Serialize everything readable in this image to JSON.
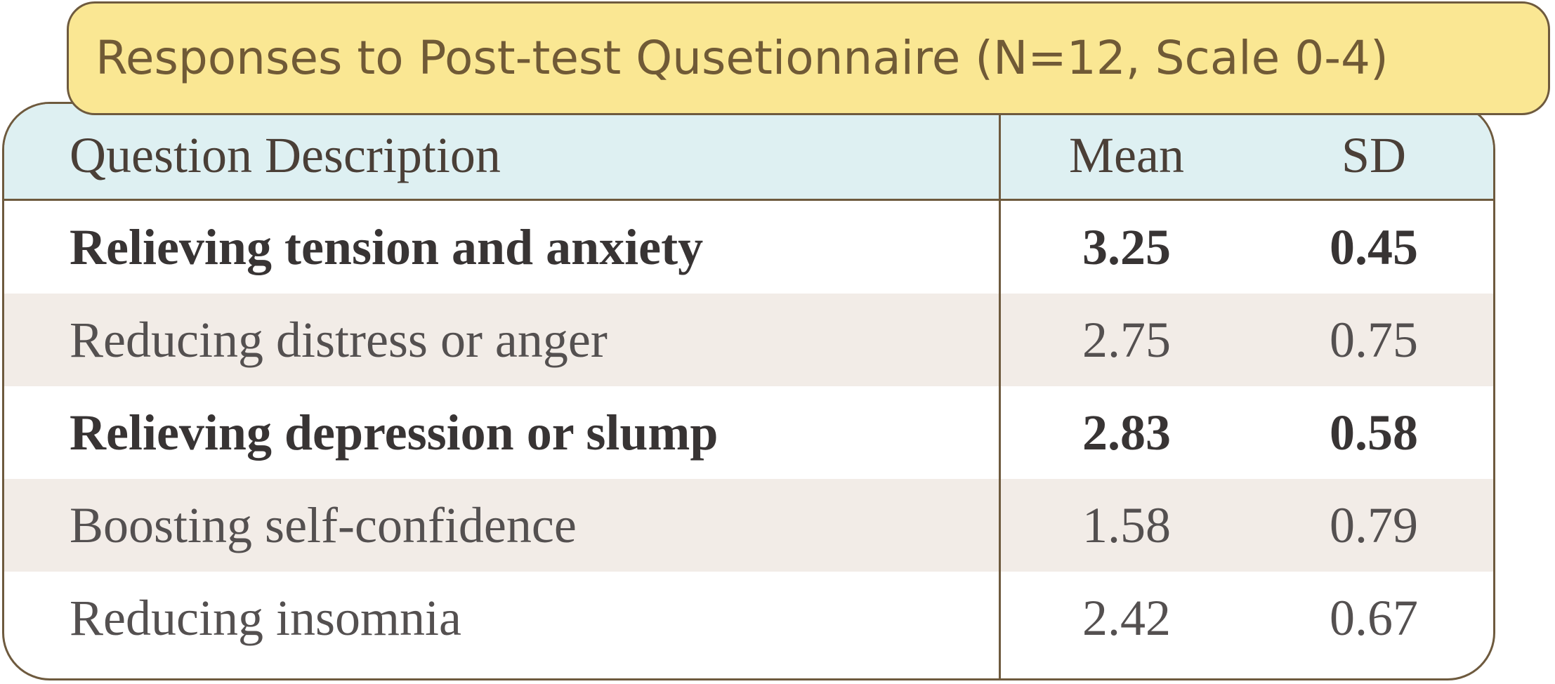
{
  "title": "Responses to Post-test Qusetionnaire (N=12, Scale 0-4)",
  "table": {
    "headers": {
      "description": "Question Description",
      "mean": "Mean",
      "sd": "SD"
    },
    "rows": [
      {
        "description": "Relieving tension and anxiety",
        "mean": "3.25",
        "sd": "0.45",
        "bold": true
      },
      {
        "description": "Reducing distress or anger",
        "mean": "2.75",
        "sd": "0.75",
        "bold": false
      },
      {
        "description": "Relieving depression or slump",
        "mean": "2.83",
        "sd": "0.58",
        "bold": true
      },
      {
        "description": "Boosting self-confidence",
        "mean": "1.58",
        "sd": "0.79",
        "bold": false
      },
      {
        "description": "Reducing insomnia",
        "mean": "2.42",
        "sd": "0.67",
        "bold": false
      }
    ]
  },
  "colors": {
    "title_background": "#fae793",
    "header_background": "#def0f2",
    "shaded_row": "#f2ece7",
    "border": "#6e5a3e"
  }
}
